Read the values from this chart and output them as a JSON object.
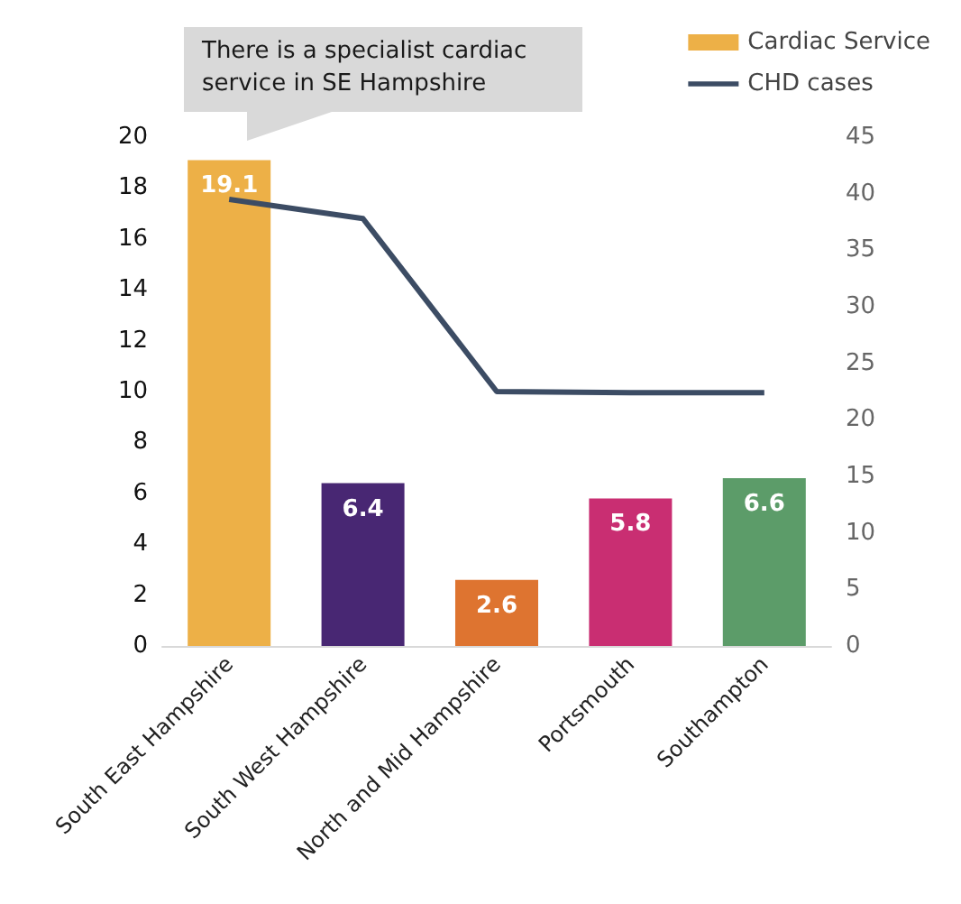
{
  "chart_data": {
    "type": "bar",
    "categories": [
      "South East Hampshire",
      "South West Hampshire",
      "North and Mid Hampshire",
      "Portsmouth",
      "Southampton"
    ],
    "series": [
      {
        "name": "Cardiac Service",
        "colors": [
          "#edb047",
          "#482773",
          "#de7430",
          "#c92e72",
          "#5c9c69"
        ],
        "values": [
          19.1,
          6.4,
          2.6,
          5.8,
          6.6
        ],
        "value_labels": [
          "19.1",
          "6.4",
          "2.6",
          "5.8",
          "6.6"
        ]
      },
      {
        "name": "CHD cases",
        "type": "line",
        "axis": "y2",
        "color": "#3c4c64",
        "values": [
          39.5,
          37.8,
          22.5,
          22.4,
          22.4
        ]
      }
    ],
    "ylim": [
      0,
      20
    ],
    "yticks": [
      0,
      2,
      4,
      6,
      8,
      10,
      12,
      14,
      16,
      18,
      20
    ],
    "y2lim": [
      0,
      45
    ],
    "y2ticks": [
      0,
      5,
      10,
      15,
      20,
      25,
      30,
      35,
      40,
      45
    ],
    "legend": "top right",
    "grid": false,
    "annotations": [
      "There is a specialist cardiac service in SE Hampshire"
    ]
  }
}
